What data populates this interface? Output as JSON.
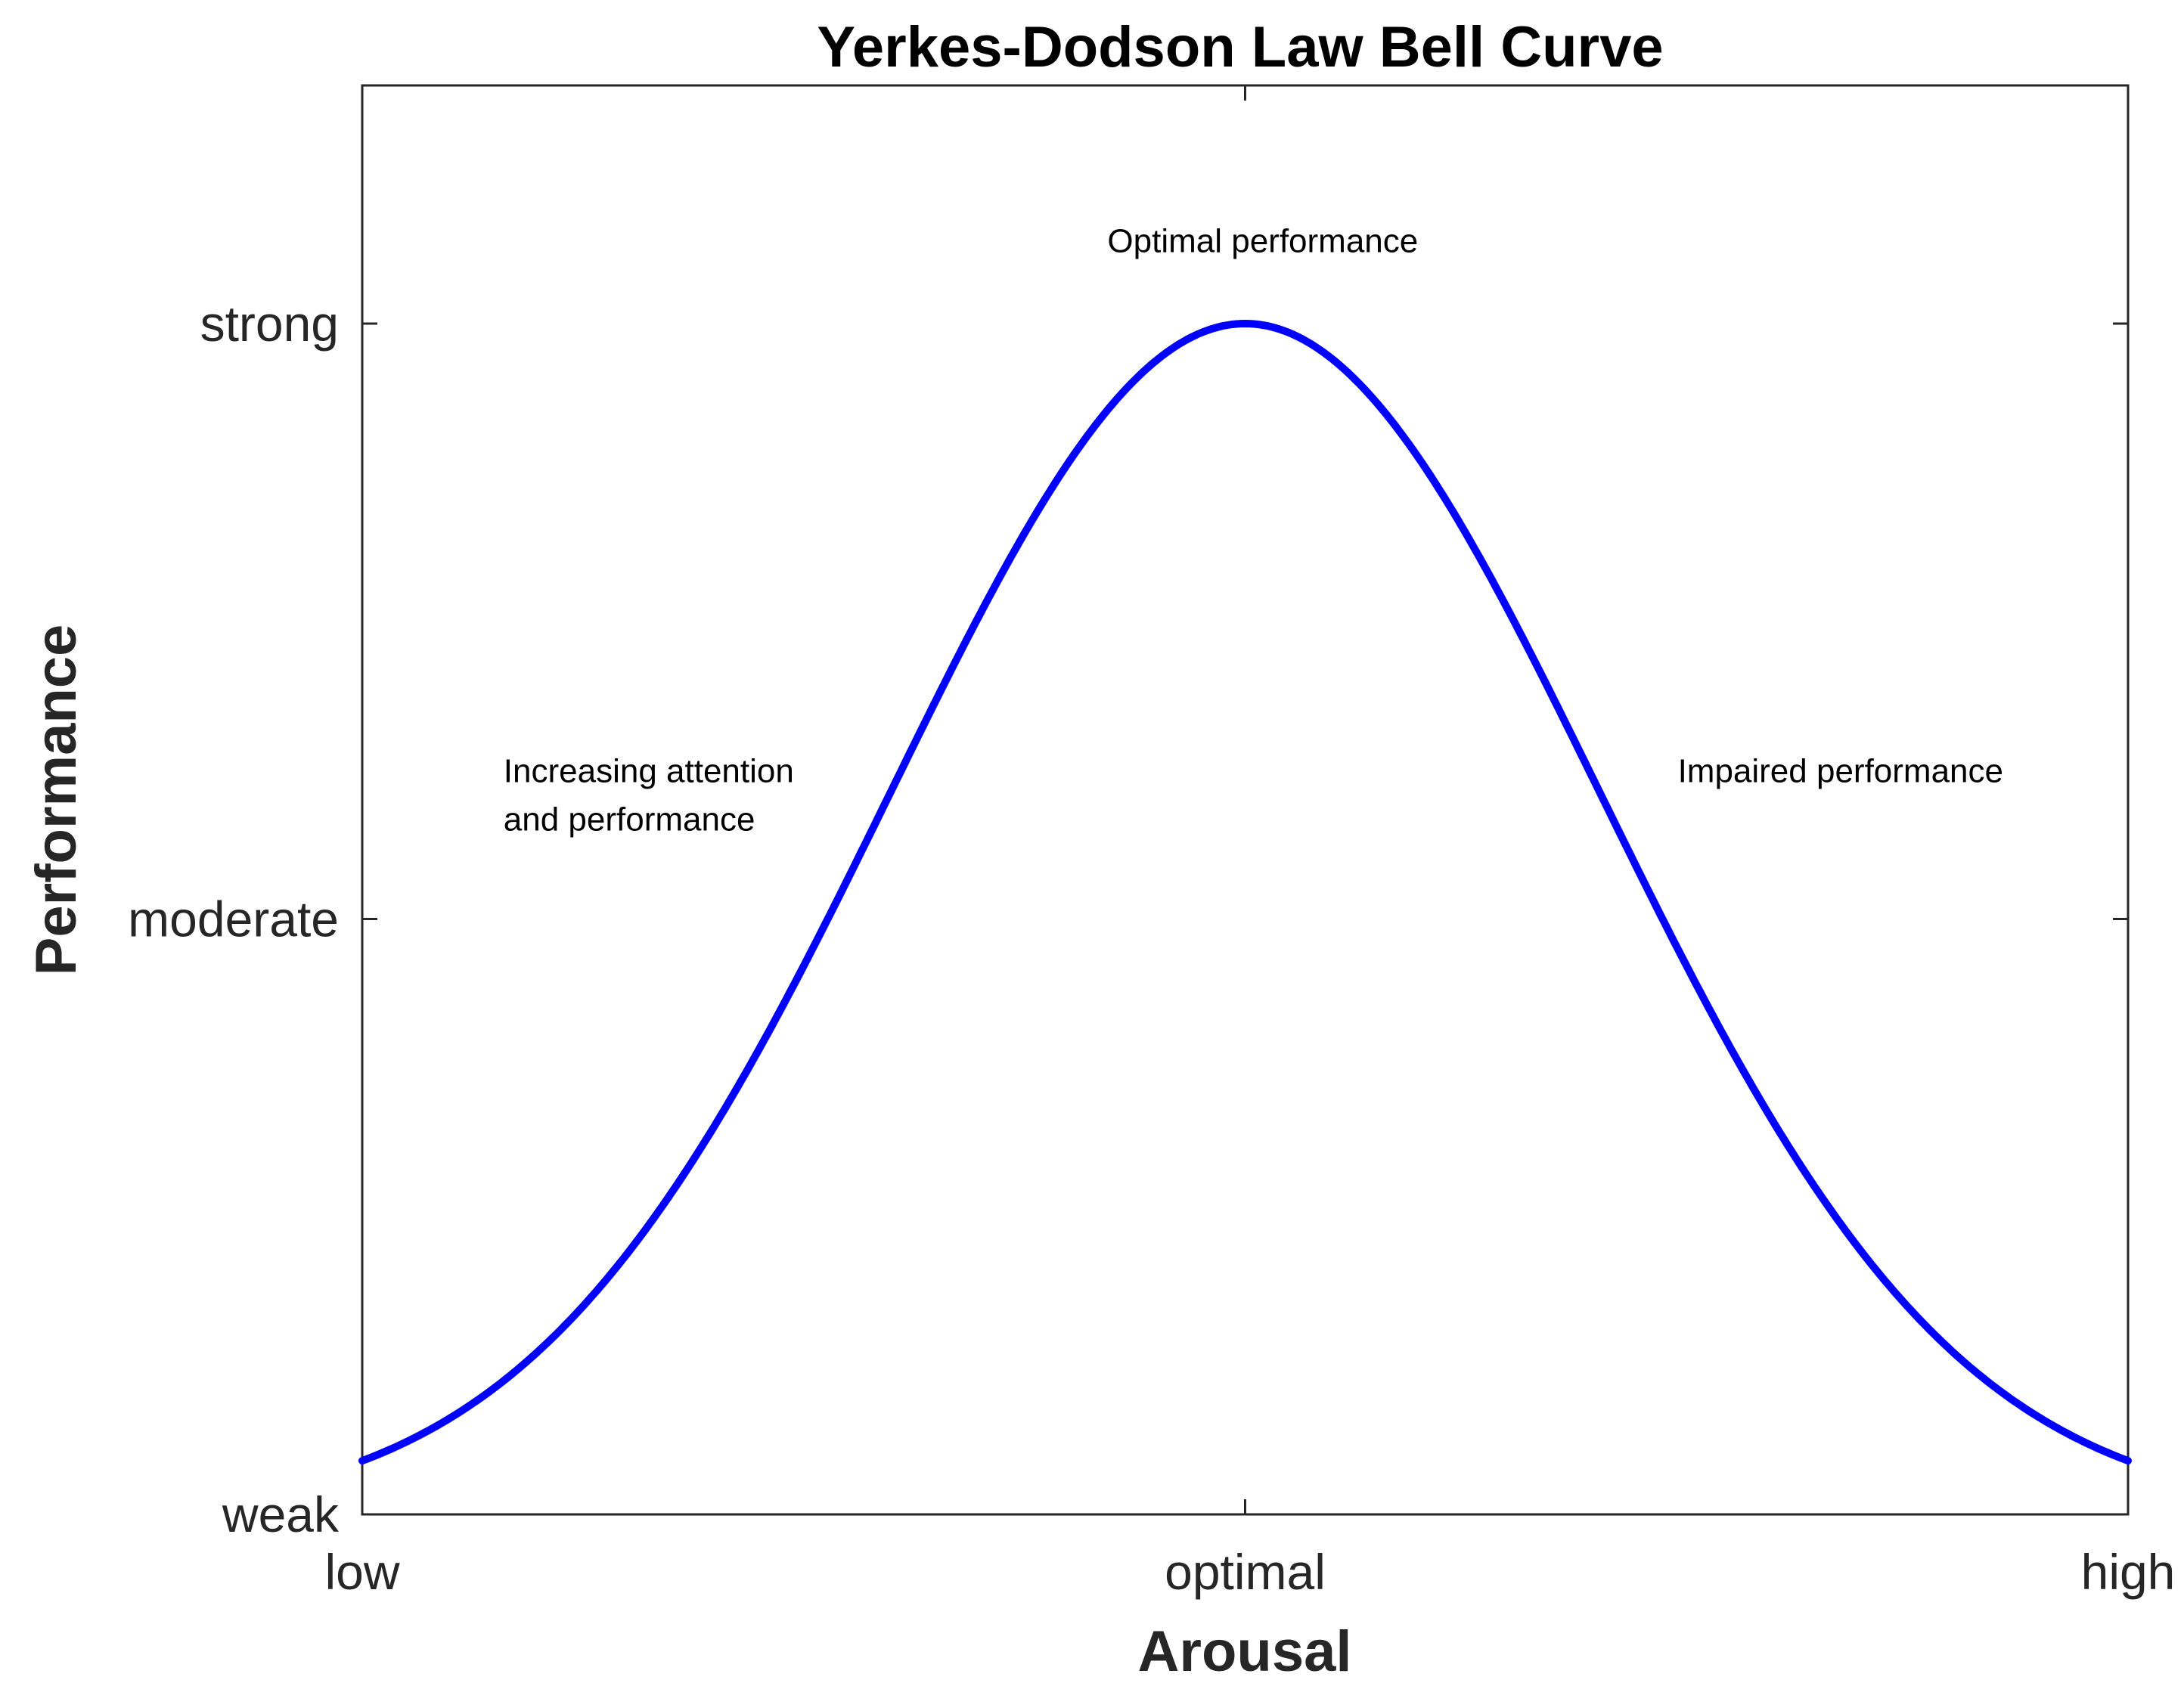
{
  "chart_data": {
    "type": "line",
    "title": "Yerkes-Dodson Law Bell Curve",
    "xlabel": "Arousal",
    "ylabel": "Performance",
    "xlim": [
      0,
      2
    ],
    "ylim": [
      0,
      2
    ],
    "x_ticks": [
      {
        "value": 0,
        "label": "low"
      },
      {
        "value": 1,
        "label": "optimal"
      },
      {
        "value": 2,
        "label": "high"
      }
    ],
    "y_ticks": [
      {
        "value": 0,
        "label": "weak"
      },
      {
        "value": 1,
        "label": "moderate"
      },
      {
        "value": 2,
        "label": "strong"
      }
    ],
    "curve": {
      "shape": "gaussian",
      "peak_x": 1,
      "peak_y": 2,
      "edge_y": 0.09,
      "color": "#0000ff"
    },
    "annotations": [
      {
        "lines": [
          "Optimal performance"
        ],
        "x": 1.02,
        "y": 2.12
      },
      {
        "lines": [
          "Increasing attention",
          "and performance"
        ],
        "x": 0.16,
        "y": 1.23
      },
      {
        "lines": [
          "Impaired performance"
        ],
        "x": 1.49,
        "y": 1.23
      }
    ],
    "grid": false,
    "box": true
  }
}
